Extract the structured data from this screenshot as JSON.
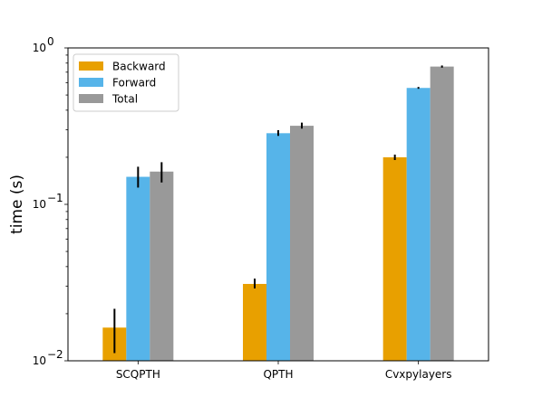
{
  "chart_data": {
    "type": "bar",
    "title": "",
    "xlabel": "",
    "ylabel": "time (s)",
    "yscale": "log",
    "ylim": [
      0.01,
      1
    ],
    "y_ticks": [
      {
        "value": 0.01,
        "base": "10",
        "exp": "−2"
      },
      {
        "value": 0.1,
        "base": "10",
        "exp": "−1"
      },
      {
        "value": 1,
        "base": "10",
        "exp": "0"
      }
    ],
    "categories": [
      "SCQPTH",
      "QPTH",
      "Cvxpylayers"
    ],
    "series": [
      {
        "name": "Backward",
        "color": "#E8A000",
        "values": [
          0.0163,
          0.031,
          0.2
        ],
        "err_low": [
          0.0112,
          0.029,
          0.192
        ],
        "err_high": [
          0.0215,
          0.0335,
          0.208
        ]
      },
      {
        "name": "Forward",
        "color": "#56B4E9",
        "values": [
          0.15,
          0.285,
          0.555
        ],
        "err_low": [
          0.128,
          0.274,
          0.548
        ],
        "err_high": [
          0.174,
          0.298,
          0.563
        ]
      },
      {
        "name": "Total",
        "color": "#999999",
        "values": [
          0.162,
          0.318,
          0.76
        ],
        "err_low": [
          0.138,
          0.305,
          0.748
        ],
        "err_high": [
          0.186,
          0.333,
          0.772
        ]
      }
    ],
    "legend_position": "top-left",
    "grid": false
  }
}
